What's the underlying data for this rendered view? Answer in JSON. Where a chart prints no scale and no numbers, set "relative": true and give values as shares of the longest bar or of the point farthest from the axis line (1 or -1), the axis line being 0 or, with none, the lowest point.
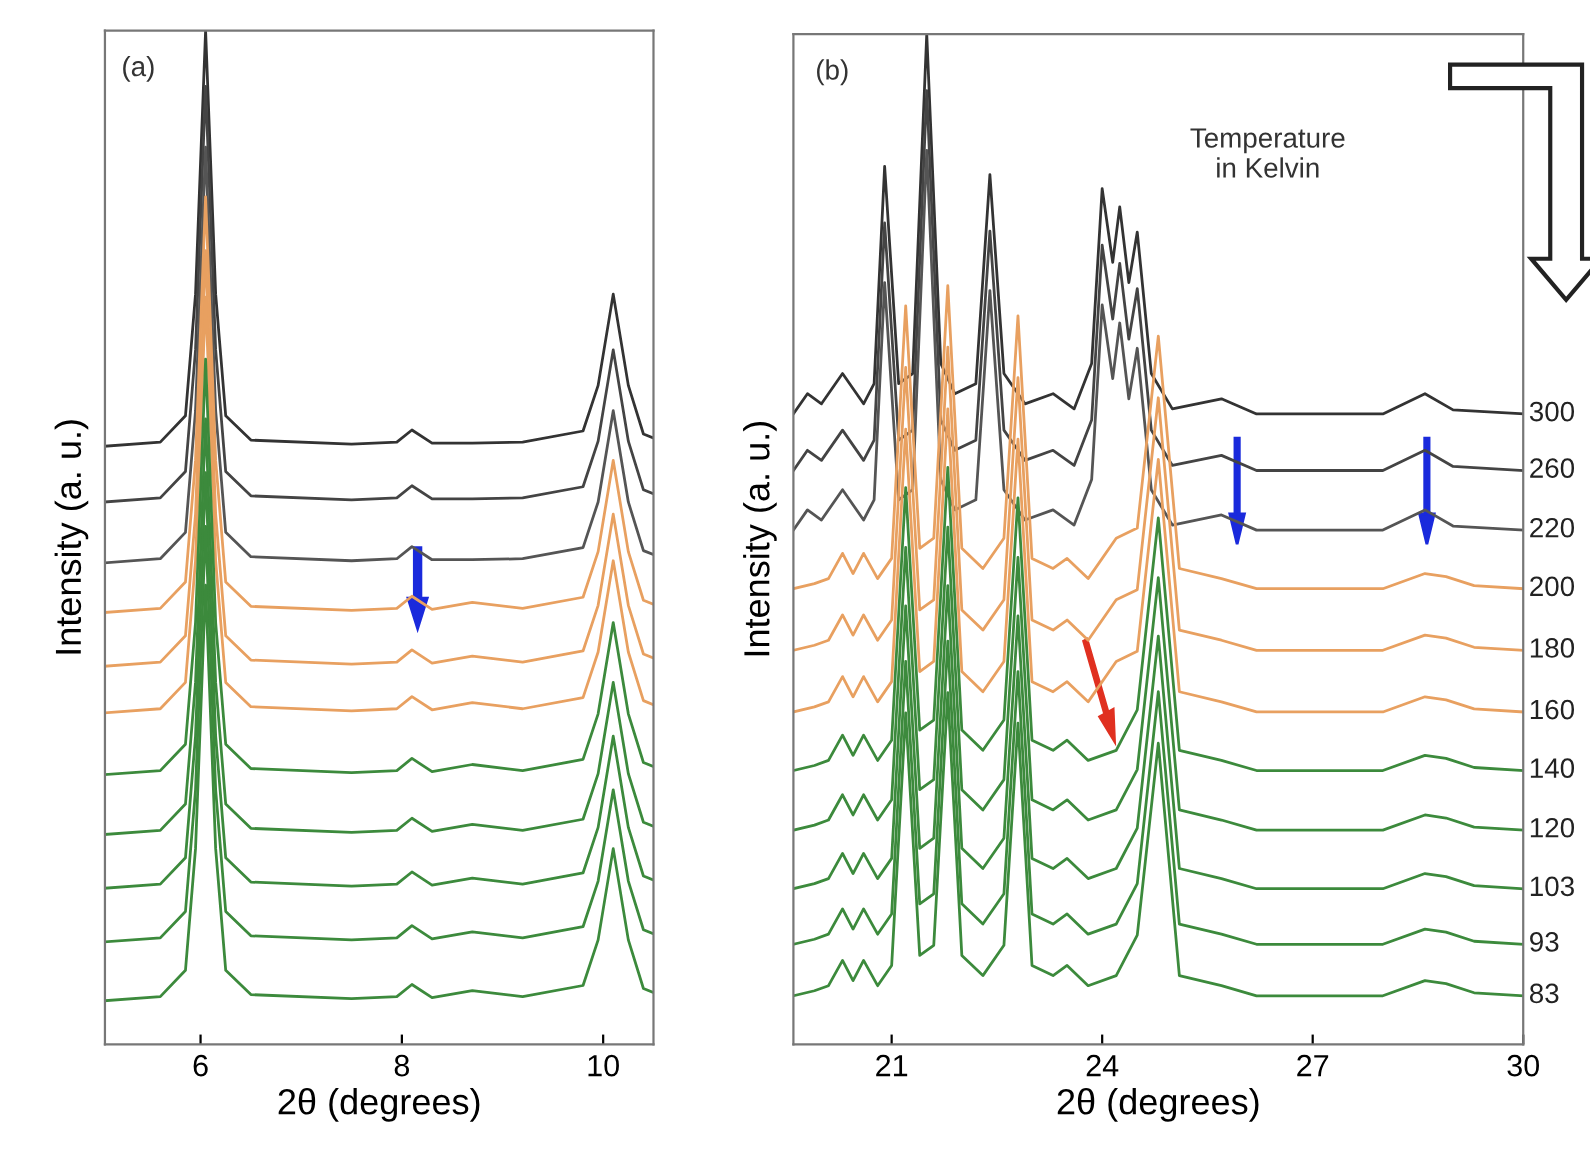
{
  "chart_data": [
    {
      "type": "line",
      "relative": true,
      "xlabel": "2θ (degrees)",
      "ylabel": "Intensity (a. u.)",
      "annotations": [
        "(a)"
      ],
      "xlim": [
        5.05,
        10.5
      ],
      "xticks": [
        6,
        8,
        10
      ],
      "tick_labels": "x",
      "grid": false,
      "legend": false,
      "x": [
        5.05,
        5.6,
        5.85,
        5.95,
        6.05,
        6.15,
        6.25,
        6.5,
        7.5,
        7.95,
        8.1,
        8.3,
        8.7,
        9.2,
        9.8,
        9.95,
        10.1,
        10.25,
        10.4,
        10.5
      ],
      "series": [
        {
          "color": "#333333",
          "values": [
            0.59,
            0.594,
            0.62,
            0.74,
            1.0,
            0.74,
            0.62,
            0.596,
            0.592,
            0.594,
            0.606,
            0.593,
            0.593,
            0.594,
            0.605,
            0.65,
            0.74,
            0.65,
            0.602,
            0.598
          ]
        },
        {
          "color": "#444444",
          "values": [
            0.535,
            0.539,
            0.565,
            0.685,
            0.945,
            0.685,
            0.565,
            0.541,
            0.537,
            0.539,
            0.551,
            0.538,
            0.538,
            0.539,
            0.55,
            0.595,
            0.685,
            0.595,
            0.547,
            0.543
          ]
        },
        {
          "color": "#555555",
          "values": [
            0.475,
            0.479,
            0.505,
            0.625,
            0.885,
            0.625,
            0.505,
            0.481,
            0.477,
            0.479,
            0.491,
            0.478,
            0.478,
            0.479,
            0.49,
            0.535,
            0.625,
            0.535,
            0.487,
            0.483
          ]
        },
        {
          "color": "#e8a060",
          "values": [
            0.426,
            0.43,
            0.456,
            0.576,
            0.836,
            0.576,
            0.456,
            0.432,
            0.428,
            0.43,
            0.442,
            0.429,
            0.436,
            0.43,
            0.441,
            0.486,
            0.576,
            0.486,
            0.438,
            0.434
          ]
        },
        {
          "color": "#e8a060",
          "values": [
            0.373,
            0.377,
            0.403,
            0.523,
            0.783,
            0.523,
            0.403,
            0.379,
            0.375,
            0.377,
            0.389,
            0.376,
            0.383,
            0.377,
            0.388,
            0.433,
            0.523,
            0.433,
            0.385,
            0.381
          ]
        },
        {
          "color": "#e8a060",
          "values": [
            0.327,
            0.331,
            0.357,
            0.477,
            0.737,
            0.477,
            0.357,
            0.333,
            0.329,
            0.331,
            0.343,
            0.33,
            0.337,
            0.331,
            0.342,
            0.387,
            0.477,
            0.387,
            0.339,
            0.335
          ]
        },
        {
          "color": "#3c8a3c",
          "values": [
            0.266,
            0.27,
            0.296,
            0.416,
            0.676,
            0.416,
            0.296,
            0.272,
            0.268,
            0.27,
            0.282,
            0.269,
            0.276,
            0.27,
            0.281,
            0.326,
            0.416,
            0.326,
            0.278,
            0.274
          ]
        },
        {
          "color": "#3c8a3c",
          "values": [
            0.207,
            0.211,
            0.237,
            0.357,
            0.617,
            0.357,
            0.237,
            0.213,
            0.209,
            0.211,
            0.223,
            0.21,
            0.217,
            0.211,
            0.222,
            0.267,
            0.357,
            0.267,
            0.219,
            0.215
          ]
        },
        {
          "color": "#3c8a3c",
          "values": [
            0.154,
            0.158,
            0.184,
            0.304,
            0.564,
            0.304,
            0.184,
            0.16,
            0.156,
            0.158,
            0.17,
            0.157,
            0.164,
            0.158,
            0.169,
            0.214,
            0.304,
            0.214,
            0.166,
            0.162
          ]
        },
        {
          "color": "#3c8a3c",
          "values": [
            0.101,
            0.105,
            0.131,
            0.251,
            0.511,
            0.251,
            0.131,
            0.107,
            0.103,
            0.105,
            0.117,
            0.104,
            0.111,
            0.105,
            0.116,
            0.161,
            0.251,
            0.161,
            0.113,
            0.109
          ]
        },
        {
          "color": "#3c8a3c",
          "values": [
            0.043,
            0.047,
            0.073,
            0.193,
            0.453,
            0.193,
            0.073,
            0.049,
            0.045,
            0.047,
            0.059,
            0.046,
            0.053,
            0.047,
            0.058,
            0.103,
            0.193,
            0.103,
            0.055,
            0.051
          ]
        }
      ]
    },
    {
      "type": "line",
      "relative": true,
      "xlabel": "2θ (degrees)",
      "ylabel": "Intensity (a. u.)",
      "annotations": [
        "(b)",
        "Temperature\nin Kelvin"
      ],
      "xlim": [
        19.6,
        30
      ],
      "xticks": [
        21,
        24,
        27,
        30
      ],
      "tick_labels": "x",
      "grid": false,
      "legend": false,
      "series": [
        {
          "name": "300",
          "color": "#333333",
          "x": [
            19.6,
            19.8,
            20.0,
            20.3,
            20.6,
            20.75,
            20.9,
            21.1,
            21.3,
            21.5,
            21.7,
            21.9,
            22.2,
            22.4,
            22.6,
            22.9,
            23.3,
            23.6,
            23.85,
            24.0,
            24.15,
            24.25,
            24.38,
            24.5,
            24.7,
            25.0,
            25.7,
            26.2,
            28.0,
            28.6,
            29.0,
            30.0
          ],
          "values": [
            0.624,
            0.644,
            0.634,
            0.664,
            0.634,
            0.654,
            0.869,
            0.654,
            0.664,
            1.0,
            0.674,
            0.644,
            0.654,
            0.861,
            0.664,
            0.634,
            0.644,
            0.629,
            0.674,
            0.847,
            0.774,
            0.829,
            0.754,
            0.804,
            0.664,
            0.629,
            0.639,
            0.624,
            0.624,
            0.644,
            0.628,
            0.624
          ]
        },
        {
          "name": "260",
          "color": "#444444",
          "x": [
            19.6,
            19.8,
            20.0,
            20.3,
            20.6,
            20.75,
            20.9,
            21.1,
            21.3,
            21.5,
            21.7,
            21.9,
            22.2,
            22.4,
            22.6,
            22.9,
            23.3,
            23.6,
            23.85,
            24.0,
            24.15,
            24.25,
            24.38,
            24.5,
            24.7,
            25.0,
            25.7,
            26.2,
            28.0,
            28.6,
            29.0,
            30.0
          ],
          "values": [
            0.568,
            0.588,
            0.578,
            0.608,
            0.578,
            0.598,
            0.813,
            0.598,
            0.608,
            0.944,
            0.618,
            0.588,
            0.598,
            0.805,
            0.608,
            0.578,
            0.588,
            0.573,
            0.618,
            0.791,
            0.718,
            0.773,
            0.698,
            0.748,
            0.608,
            0.573,
            0.583,
            0.568,
            0.568,
            0.588,
            0.572,
            0.568
          ]
        },
        {
          "name": "220",
          "color": "#555555",
          "x": [
            19.6,
            19.8,
            20.0,
            20.3,
            20.6,
            20.75,
            20.9,
            21.1,
            21.3,
            21.5,
            21.7,
            21.9,
            22.2,
            22.4,
            22.6,
            22.9,
            23.3,
            23.6,
            23.85,
            24.0,
            24.15,
            24.25,
            24.38,
            24.5,
            24.7,
            25.0,
            25.7,
            26.2,
            28.0,
            28.6,
            29.0,
            30.0
          ],
          "values": [
            0.509,
            0.529,
            0.519,
            0.549,
            0.519,
            0.539,
            0.754,
            0.539,
            0.549,
            0.885,
            0.559,
            0.529,
            0.539,
            0.746,
            0.549,
            0.519,
            0.529,
            0.514,
            0.559,
            0.732,
            0.659,
            0.714,
            0.639,
            0.689,
            0.549,
            0.514,
            0.524,
            0.509,
            0.509,
            0.529,
            0.513,
            0.509
          ]
        },
        {
          "name": "200",
          "color": "#e8a060",
          "x": [
            19.6,
            19.9,
            20.1,
            20.3,
            20.45,
            20.6,
            20.8,
            21.0,
            21.2,
            21.4,
            21.6,
            21.8,
            22.0,
            22.3,
            22.6,
            22.8,
            23.0,
            23.3,
            23.5,
            23.8,
            24.2,
            24.5,
            24.8,
            25.1,
            25.7,
            26.2,
            28.0,
            28.6,
            28.9,
            29.3,
            30.0
          ],
          "values": [
            0.451,
            0.456,
            0.461,
            0.486,
            0.466,
            0.486,
            0.461,
            0.481,
            0.731,
            0.491,
            0.501,
            0.751,
            0.491,
            0.471,
            0.501,
            0.721,
            0.481,
            0.471,
            0.481,
            0.461,
            0.501,
            0.511,
            0.701,
            0.471,
            0.461,
            0.451,
            0.451,
            0.466,
            0.463,
            0.454,
            0.451
          ]
        },
        {
          "name": "180",
          "color": "#e8a060",
          "x": [
            19.6,
            19.9,
            20.1,
            20.3,
            20.45,
            20.6,
            20.8,
            21.0,
            21.2,
            21.4,
            21.6,
            21.8,
            22.0,
            22.3,
            22.6,
            22.8,
            23.0,
            23.3,
            23.5,
            23.8,
            24.2,
            24.5,
            24.8,
            25.1,
            25.7,
            26.2,
            28.0,
            28.6,
            28.9,
            29.3,
            30.0
          ],
          "values": [
            0.39,
            0.395,
            0.4,
            0.425,
            0.405,
            0.425,
            0.4,
            0.42,
            0.67,
            0.43,
            0.44,
            0.69,
            0.43,
            0.41,
            0.44,
            0.66,
            0.42,
            0.41,
            0.42,
            0.4,
            0.44,
            0.45,
            0.64,
            0.41,
            0.4,
            0.39,
            0.39,
            0.405,
            0.402,
            0.393,
            0.39
          ]
        },
        {
          "name": "160",
          "color": "#e8a060",
          "x": [
            19.6,
            19.9,
            20.1,
            20.3,
            20.45,
            20.6,
            20.8,
            21.0,
            21.2,
            21.4,
            21.6,
            21.8,
            22.0,
            22.3,
            22.6,
            22.8,
            23.0,
            23.3,
            23.5,
            23.8,
            24.2,
            24.5,
            24.8,
            25.1,
            25.7,
            26.2,
            28.0,
            28.6,
            28.9,
            29.3,
            30.0
          ],
          "values": [
            0.329,
            0.334,
            0.339,
            0.364,
            0.344,
            0.364,
            0.339,
            0.359,
            0.609,
            0.369,
            0.379,
            0.629,
            0.369,
            0.349,
            0.379,
            0.599,
            0.359,
            0.349,
            0.359,
            0.339,
            0.379,
            0.389,
            0.579,
            0.349,
            0.339,
            0.329,
            0.329,
            0.344,
            0.341,
            0.332,
            0.329
          ]
        },
        {
          "name": "140",
          "color": "#3c8a3c",
          "x": [
            19.6,
            19.9,
            20.1,
            20.3,
            20.45,
            20.6,
            20.8,
            21.0,
            21.2,
            21.4,
            21.6,
            21.8,
            22.0,
            22.3,
            22.6,
            22.8,
            23.0,
            23.3,
            23.5,
            23.8,
            24.2,
            24.5,
            24.8,
            25.1,
            25.7,
            26.2,
            28.0,
            28.6,
            28.9,
            29.3,
            30.0
          ],
          "values": [
            0.271,
            0.276,
            0.281,
            0.306,
            0.286,
            0.306,
            0.281,
            0.301,
            0.551,
            0.311,
            0.321,
            0.571,
            0.311,
            0.291,
            0.321,
            0.541,
            0.301,
            0.291,
            0.301,
            0.281,
            0.291,
            0.331,
            0.521,
            0.291,
            0.281,
            0.271,
            0.271,
            0.286,
            0.283,
            0.274,
            0.271
          ]
        },
        {
          "name": "120",
          "color": "#3c8a3c",
          "x": [
            19.6,
            19.9,
            20.1,
            20.3,
            20.45,
            20.6,
            20.8,
            21.0,
            21.2,
            21.4,
            21.6,
            21.8,
            22.0,
            22.3,
            22.6,
            22.8,
            23.0,
            23.3,
            23.5,
            23.8,
            24.2,
            24.5,
            24.8,
            25.1,
            25.7,
            26.2,
            28.0,
            28.6,
            28.9,
            29.3,
            30.0
          ],
          "values": [
            0.212,
            0.217,
            0.222,
            0.247,
            0.227,
            0.247,
            0.222,
            0.242,
            0.492,
            0.252,
            0.262,
            0.512,
            0.252,
            0.232,
            0.262,
            0.482,
            0.242,
            0.232,
            0.242,
            0.222,
            0.232,
            0.272,
            0.462,
            0.232,
            0.222,
            0.212,
            0.212,
            0.227,
            0.224,
            0.215,
            0.212
          ]
        },
        {
          "name": "103",
          "color": "#3c8a3c",
          "x": [
            19.6,
            19.9,
            20.1,
            20.3,
            20.45,
            20.6,
            20.8,
            21.0,
            21.2,
            21.4,
            21.6,
            21.8,
            22.0,
            22.3,
            22.6,
            22.8,
            23.0,
            23.3,
            23.5,
            23.8,
            24.2,
            24.5,
            24.8,
            25.1,
            25.7,
            26.2,
            28.0,
            28.6,
            28.9,
            29.3,
            30.0
          ],
          "values": [
            0.154,
            0.159,
            0.164,
            0.189,
            0.169,
            0.189,
            0.164,
            0.184,
            0.434,
            0.194,
            0.204,
            0.454,
            0.194,
            0.174,
            0.204,
            0.424,
            0.184,
            0.174,
            0.184,
            0.164,
            0.174,
            0.214,
            0.404,
            0.174,
            0.164,
            0.154,
            0.154,
            0.169,
            0.166,
            0.157,
            0.154
          ]
        },
        {
          "name": "93",
          "color": "#3c8a3c",
          "x": [
            19.6,
            19.9,
            20.1,
            20.3,
            20.45,
            20.6,
            20.8,
            21.0,
            21.2,
            21.4,
            21.6,
            21.8,
            22.0,
            22.3,
            22.6,
            22.8,
            23.0,
            23.3,
            23.5,
            23.8,
            24.2,
            24.5,
            24.8,
            25.1,
            25.7,
            26.2,
            28.0,
            28.6,
            28.9,
            29.3,
            30.0
          ],
          "values": [
            0.099,
            0.104,
            0.109,
            0.134,
            0.114,
            0.134,
            0.109,
            0.129,
            0.379,
            0.139,
            0.149,
            0.399,
            0.139,
            0.119,
            0.149,
            0.369,
            0.129,
            0.119,
            0.129,
            0.109,
            0.119,
            0.159,
            0.349,
            0.119,
            0.109,
            0.099,
            0.099,
            0.114,
            0.111,
            0.102,
            0.099
          ]
        },
        {
          "name": "83",
          "color": "#3c8a3c",
          "x": [
            19.6,
            19.9,
            20.1,
            20.3,
            20.45,
            20.6,
            20.8,
            21.0,
            21.2,
            21.4,
            21.6,
            21.8,
            22.0,
            22.3,
            22.6,
            22.8,
            23.0,
            23.3,
            23.5,
            23.8,
            24.2,
            24.5,
            24.8,
            25.1,
            25.7,
            26.2,
            28.0,
            28.6,
            28.9,
            29.3,
            30.0
          ],
          "values": [
            0.048,
            0.053,
            0.058,
            0.083,
            0.063,
            0.083,
            0.058,
            0.078,
            0.328,
            0.088,
            0.098,
            0.348,
            0.088,
            0.068,
            0.098,
            0.318,
            0.078,
            0.068,
            0.078,
            0.058,
            0.068,
            0.108,
            0.298,
            0.068,
            0.058,
            0.048,
            0.048,
            0.063,
            0.06,
            0.051,
            0.048
          ]
        }
      ]
    }
  ]
}
